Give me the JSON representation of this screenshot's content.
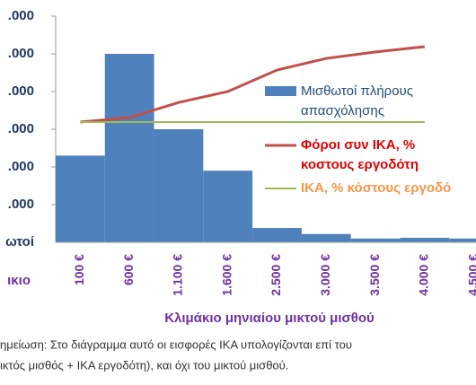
{
  "chart_data": {
    "type": "bar",
    "y_axis_label": "ωτοί",
    "x_axis_label_left": "ικιο",
    "x_title": "Κλιμάκιο μηνιαίου μικτού μισθού",
    "categories": [
      "100 €",
      "600 €",
      "1.100 €",
      "1.600 €",
      "2.500 €",
      "3.000 €",
      "3.500 €",
      "4.000 €",
      "4.500 €"
    ],
    "ylim": [
      0,
      300000
    ],
    "yticks": [
      {
        "value": 50000,
        "label": ".000"
      },
      {
        "value": 100000,
        "label": ".000"
      },
      {
        "value": 150000,
        "label": ".000"
      },
      {
        "value": 200000,
        "label": ".000"
      },
      {
        "value": 250000,
        "label": ".000"
      },
      {
        "value": 300000,
        "label": ".000"
      }
    ],
    "y2lim": [
      0,
      60
    ],
    "series": [
      {
        "name": "Μισθωτοί πλήρους απασχόλησης",
        "type": "bar",
        "color": "#4f81bd",
        "text_color": "#1f4e79",
        "values": [
          115000,
          250000,
          150000,
          95000,
          19000,
          11000,
          5000,
          6000,
          5000
        ]
      },
      {
        "name": "Φόροι συν ΙΚΑ, % κοστους εργοδότη",
        "type": "line",
        "axis": "y2",
        "color": "#c0504d",
        "text_color": "#e00000",
        "values": [
          31.9,
          33.1,
          37.1,
          40.0,
          45.7,
          48.8,
          50.5,
          51.9,
          null
        ]
      },
      {
        "name": "ΙΚΑ, % κόστους εργοδό",
        "type": "line",
        "axis": "y2",
        "color": "#9bbb59",
        "text_color": "#f79646",
        "values": [
          31.9,
          31.9,
          31.9,
          31.9,
          31.9,
          31.9,
          31.9,
          31.9,
          null
        ]
      }
    ],
    "note": [
      "ημείωση: Στο διάγραμμα αυτό οι εισφορές ΙΚΑ υπολογίζονται επί του",
      "ικτός μισθός + ΙΚΑ εργοδότη), και όχι του μικτού μισθού."
    ]
  }
}
